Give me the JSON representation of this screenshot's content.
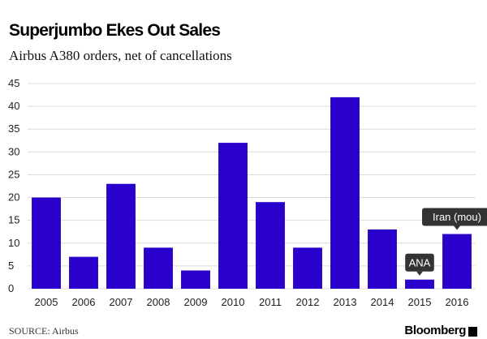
{
  "chart_data": {
    "type": "bar",
    "title": "Superjumbo Ekes Out Sales",
    "subtitle": "Airbus A380 orders, net of cancellations",
    "categories": [
      "2005",
      "2006",
      "2007",
      "2008",
      "2009",
      "2010",
      "2011",
      "2012",
      "2013",
      "2014",
      "2015",
      "2016"
    ],
    "values": [
      20,
      7,
      23,
      9,
      4,
      32,
      19,
      9,
      42,
      13,
      2,
      12
    ],
    "ylim": [
      0,
      45
    ],
    "yticks": [
      0,
      5,
      10,
      15,
      20,
      25,
      30,
      35,
      40,
      45
    ],
    "grid": true,
    "bar_color": "#2a00cc",
    "annotations": [
      {
        "category": "2015",
        "text": "ANA"
      },
      {
        "category": "2016",
        "text": "Iran (mou)"
      }
    ]
  },
  "footer": {
    "source": "SOURCE: Airbus",
    "brand": "Bloomberg"
  },
  "colors": {
    "grid": "#dcdcdc",
    "callout": "#333333"
  }
}
